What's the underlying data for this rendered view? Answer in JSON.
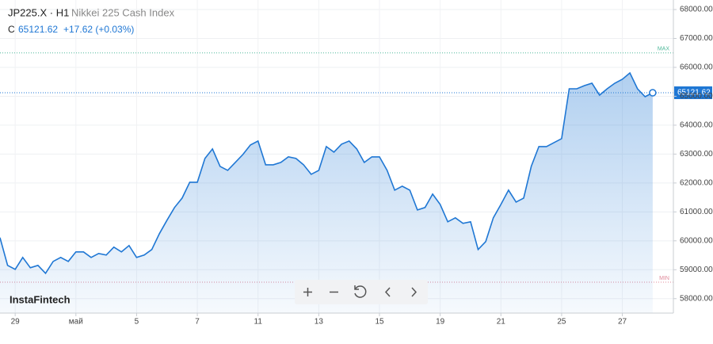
{
  "header": {
    "symbol": "JP225.X · H1",
    "name": "Nikkei 225 Cash Index",
    "price_prefix": "C",
    "price": "65121.62",
    "change": "+17.62 (+0.03%)"
  },
  "brand": "InstaFintech",
  "chart_data": {
    "type": "area",
    "categories": [
      null,
      null,
      "29",
      null,
      null,
      null,
      null,
      null,
      null,
      null,
      "май",
      null,
      null,
      null,
      null,
      null,
      null,
      null,
      "5",
      null,
      null,
      null,
      null,
      null,
      null,
      null,
      "7",
      null,
      null,
      null,
      null,
      null,
      null,
      null,
      "11",
      null,
      null,
      null,
      null,
      null,
      null,
      null,
      "13",
      null,
      null,
      null,
      null,
      null,
      null,
      null,
      "15",
      null,
      null,
      null,
      null,
      null,
      null,
      null,
      "19",
      null,
      null,
      null,
      null,
      null,
      null,
      null,
      "21",
      null,
      null,
      null,
      null,
      null,
      null,
      null,
      "25",
      null,
      null,
      null,
      null,
      null,
      null,
      null,
      "27",
      null,
      null,
      null,
      null
    ],
    "series": [
      {
        "name": "JP225.X",
        "color": "#1f77d4",
        "values": [
          60110,
          59151,
          59014,
          59425,
          59068,
          59151,
          58877,
          59288,
          59425,
          59288,
          59616,
          59616,
          59425,
          59562,
          59507,
          59781,
          59616,
          59836,
          59425,
          59507,
          59699,
          60247,
          60712,
          61151,
          61479,
          62027,
          62027,
          62849,
          63178,
          62575,
          62438,
          62712,
          62986,
          63315,
          63452,
          62630,
          62630,
          62712,
          62904,
          62849,
          62630,
          62301,
          62438,
          63260,
          63068,
          63342,
          63452,
          63178,
          62712,
          62904,
          62904,
          62438,
          61753,
          61890,
          61753,
          61068,
          61151,
          61616,
          61260,
          60658,
          60795,
          60603,
          60658,
          59699,
          59973,
          60795,
          61260,
          61753,
          61342,
          61479,
          62575,
          63260,
          63260,
          63397,
          63534,
          65260,
          65260,
          65370,
          65452,
          65041,
          65260,
          65452,
          65589,
          65808,
          65260,
          64986,
          65121.62
        ]
      }
    ],
    "ylim": [
      57500,
      68330
    ],
    "yticks": [
      {
        "value": 58000,
        "label": "58000.00"
      },
      {
        "value": 59000,
        "label": "59000.00"
      },
      {
        "value": 60000,
        "label": "60000.00"
      },
      {
        "value": 61000,
        "label": "61000.00"
      },
      {
        "value": 62000,
        "label": "62000.00"
      },
      {
        "value": 63000,
        "label": "63000.00"
      },
      {
        "value": 64000,
        "label": "64000.00"
      },
      {
        "value": 65000,
        "label": "65000.00"
      },
      {
        "value": 66000,
        "label": "66000.00"
      },
      {
        "value": 67000,
        "label": "67000.00"
      },
      {
        "value": 68000,
        "label": "68000.00"
      }
    ],
    "levels": [
      {
        "label": "MAX",
        "value": 66500,
        "color": "#4fb89a"
      },
      {
        "label": "MIN",
        "value": 58570,
        "color": "#e08a9a"
      }
    ],
    "grid": true
  }
}
